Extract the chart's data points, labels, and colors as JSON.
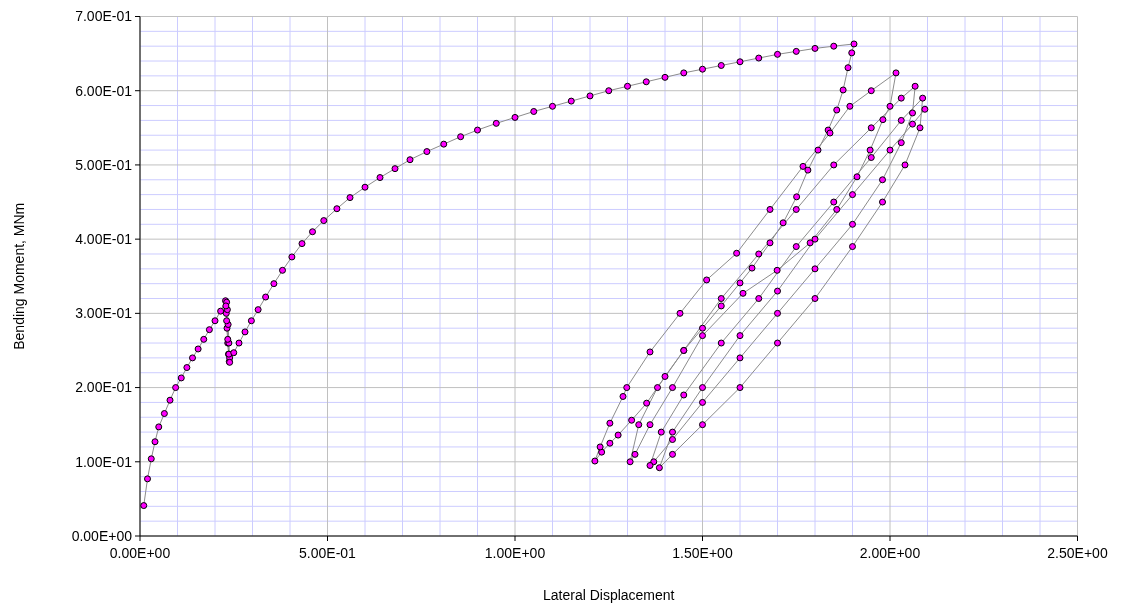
{
  "chart_data": {
    "type": "line",
    "xlabel": "Lateral Displacement",
    "ylabel": "Bending Moment, MNm",
    "marker": "circle",
    "line_style": "solid",
    "grid": true,
    "xlim": [
      0,
      2.5
    ],
    "ylim": [
      0,
      0.7
    ],
    "xticks": [
      {
        "value": 0,
        "label": "0.00E+00"
      },
      {
        "value": 0.1,
        "label": null
      },
      {
        "value": 0.2,
        "label": null
      },
      {
        "value": 0.3,
        "label": null
      },
      {
        "value": 0.4,
        "label": null
      },
      {
        "value": 0.5,
        "label": "5.00E-01"
      },
      {
        "value": 0.6,
        "label": null
      },
      {
        "value": 0.7,
        "label": null
      },
      {
        "value": 0.8,
        "label": null
      },
      {
        "value": 0.9,
        "label": null
      },
      {
        "value": 1,
        "label": "1.00E+00"
      },
      {
        "value": 1.1,
        "label": null
      },
      {
        "value": 1.2,
        "label": null
      },
      {
        "value": 1.3,
        "label": null
      },
      {
        "value": 1.4,
        "label": null
      },
      {
        "value": 1.5,
        "label": "1.50E+00"
      },
      {
        "value": 1.6,
        "label": null
      },
      {
        "value": 1.7,
        "label": null
      },
      {
        "value": 1.8,
        "label": null
      },
      {
        "value": 1.9,
        "label": null
      },
      {
        "value": 2,
        "label": "2.00E+00"
      },
      {
        "value": 2.1,
        "label": null
      },
      {
        "value": 2.2,
        "label": null
      },
      {
        "value": 2.3,
        "label": null
      },
      {
        "value": 2.4,
        "label": null
      },
      {
        "value": 2.5,
        "label": "2.50E+00"
      }
    ],
    "yticks": [
      {
        "value": 0,
        "label": "0.00E+00"
      },
      {
        "value": 0.02,
        "label": null
      },
      {
        "value": 0.04,
        "label": null
      },
      {
        "value": 0.06,
        "label": null
      },
      {
        "value": 0.08,
        "label": null
      },
      {
        "value": 0.1,
        "label": "1.00E-01"
      },
      {
        "value": 0.12,
        "label": null
      },
      {
        "value": 0.14,
        "label": null
      },
      {
        "value": 0.16,
        "label": null
      },
      {
        "value": 0.18,
        "label": null
      },
      {
        "value": 0.2,
        "label": "2.00E-01"
      },
      {
        "value": 0.22,
        "label": null
      },
      {
        "value": 0.24,
        "label": null
      },
      {
        "value": 0.26,
        "label": null
      },
      {
        "value": 0.28,
        "label": null
      },
      {
        "value": 0.3,
        "label": "3.00E-01"
      },
      {
        "value": 0.32,
        "label": null
      },
      {
        "value": 0.34,
        "label": null
      },
      {
        "value": 0.36,
        "label": null
      },
      {
        "value": 0.38,
        "label": null
      },
      {
        "value": 0.4,
        "label": "4.00E-01"
      },
      {
        "value": 0.42,
        "label": null
      },
      {
        "value": 0.44,
        "label": null
      },
      {
        "value": 0.46,
        "label": null
      },
      {
        "value": 0.48,
        "label": null
      },
      {
        "value": 0.5,
        "label": "5.00E-01"
      },
      {
        "value": 0.52,
        "label": null
      },
      {
        "value": 0.54,
        "label": null
      },
      {
        "value": 0.56,
        "label": null
      },
      {
        "value": 0.58,
        "label": null
      },
      {
        "value": 0.6,
        "label": "6.00E-01"
      },
      {
        "value": 0.62,
        "label": null
      },
      {
        "value": 0.64,
        "label": null
      },
      {
        "value": 0.66,
        "label": null
      },
      {
        "value": 0.68,
        "label": null
      },
      {
        "value": 0.7,
        "label": "7.00E-01"
      }
    ],
    "series": [
      {
        "color": "#ff00ff",
        "x": [
          0.01,
          0.02,
          0.03,
          0.04,
          0.05,
          0.065,
          0.08,
          0.095,
          0.11,
          0.125,
          0.14,
          0.155,
          0.17,
          0.185,
          0.2,
          0.215,
          0.228,
          0.23,
          0.232,
          0.234,
          0.236,
          0.238,
          0.239,
          0.237,
          0.235,
          0.233,
          0.231,
          0.229,
          0.231,
          0.234,
          0.237,
          0.239,
          0.25,
          0.264,
          0.28,
          0.297,
          0.315,
          0.335,
          0.357,
          0.38,
          0.405,
          0.432,
          0.46,
          0.49,
          0.525,
          0.56,
          0.6,
          0.64,
          0.68,
          0.72,
          0.765,
          0.81,
          0.855,
          0.9,
          0.95,
          1.0,
          1.05,
          1.1,
          1.15,
          1.2,
          1.25,
          1.3,
          1.35,
          1.4,
          1.45,
          1.5,
          1.55,
          1.6,
          1.65,
          1.7,
          1.75,
          1.8,
          1.85,
          1.904,
          1.898,
          1.888,
          1.875,
          1.858,
          1.835,
          1.808,
          1.781,
          1.751,
          1.715,
          1.68,
          1.632,
          1.6,
          1.55,
          1.5,
          1.45,
          1.4,
          1.351,
          1.311,
          1.275,
          1.253,
          1.231,
          1.213,
          1.227,
          1.253,
          1.288,
          1.298,
          1.36,
          1.44,
          1.511,
          1.591,
          1.68,
          1.768,
          1.84,
          1.893,
          1.95,
          2.016,
          2.0,
          1.981,
          1.947,
          1.912,
          1.858,
          1.787,
          1.699,
          1.608,
          1.5,
          1.42,
          1.36,
          1.32,
          1.307,
          1.33,
          1.38,
          1.45,
          1.55,
          1.65,
          1.75,
          1.85,
          1.95,
          2.03,
          2.067,
          2.06,
          2.03,
          1.98,
          1.9,
          1.8,
          1.7,
          1.6,
          1.5,
          1.42,
          1.37,
          1.36,
          1.39,
          1.45,
          1.55,
          1.65,
          1.75,
          1.85,
          1.95,
          2.03,
          2.087,
          2.08,
          2.04,
          1.98,
          1.9,
          1.8,
          1.7,
          1.6,
          1.5,
          1.42,
          1.385,
          1.42,
          1.5,
          1.6,
          1.7,
          1.8,
          1.9,
          2.0,
          2.06,
          2.093
        ],
        "values": [
          0.041,
          0.077,
          0.104,
          0.127,
          0.147,
          0.165,
          0.183,
          0.2,
          0.213,
          0.227,
          0.24,
          0.252,
          0.265,
          0.278,
          0.29,
          0.303,
          0.317,
          0.3,
          0.28,
          0.26,
          0.245,
          0.235,
          0.24,
          0.26,
          0.285,
          0.305,
          0.315,
          0.31,
          0.29,
          0.265,
          0.245,
          0.234,
          0.247,
          0.26,
          0.275,
          0.29,
          0.305,
          0.322,
          0.34,
          0.358,
          0.376,
          0.394,
          0.41,
          0.425,
          0.441,
          0.456,
          0.47,
          0.483,
          0.495,
          0.507,
          0.518,
          0.528,
          0.538,
          0.547,
          0.556,
          0.564,
          0.572,
          0.579,
          0.586,
          0.593,
          0.6,
          0.606,
          0.612,
          0.618,
          0.624,
          0.629,
          0.634,
          0.639,
          0.644,
          0.649,
          0.653,
          0.657,
          0.66,
          0.663,
          0.651,
          0.631,
          0.601,
          0.574,
          0.547,
          0.52,
          0.493,
          0.457,
          0.422,
          0.395,
          0.361,
          0.341,
          0.31,
          0.28,
          0.25,
          0.215,
          0.179,
          0.156,
          0.136,
          0.125,
          0.113,
          0.101,
          0.12,
          0.152,
          0.188,
          0.2,
          0.248,
          0.3,
          0.345,
          0.381,
          0.44,
          0.498,
          0.543,
          0.579,
          0.6,
          0.624,
          0.579,
          0.561,
          0.52,
          0.484,
          0.44,
          0.395,
          0.358,
          0.327,
          0.27,
          0.2,
          0.15,
          0.11,
          0.1,
          0.15,
          0.2,
          0.25,
          0.32,
          0.38,
          0.44,
          0.5,
          0.55,
          0.59,
          0.606,
          0.57,
          0.53,
          0.48,
          0.42,
          0.36,
          0.3,
          0.24,
          0.18,
          0.13,
          0.1,
          0.095,
          0.14,
          0.19,
          0.26,
          0.32,
          0.39,
          0.45,
          0.51,
          0.56,
          0.59,
          0.55,
          0.5,
          0.45,
          0.39,
          0.32,
          0.26,
          0.2,
          0.15,
          0.11,
          0.092,
          0.14,
          0.2,
          0.27,
          0.33,
          0.4,
          0.46,
          0.52,
          0.555,
          0.575
        ]
      }
    ]
  }
}
